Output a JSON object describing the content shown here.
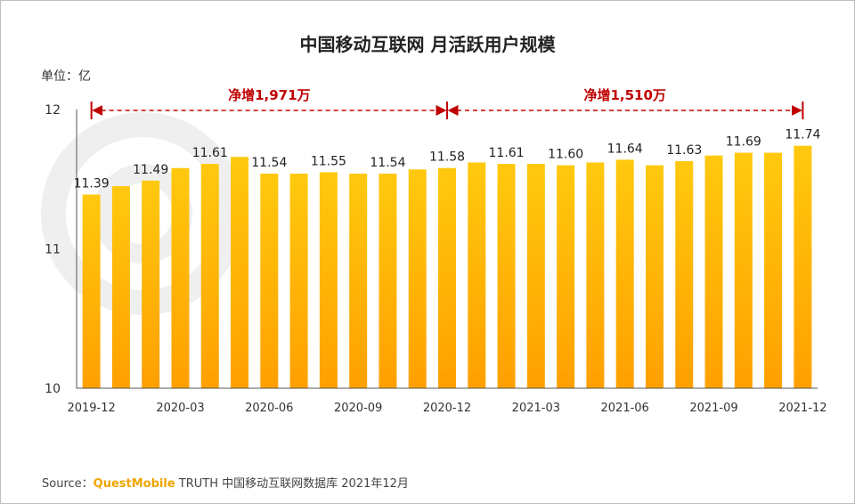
{
  "chart_data": {
    "type": "bar",
    "title": "中国移动互联网 月活跃用户规模",
    "unit_label": "单位：亿",
    "ylim": [
      10,
      12
    ],
    "yticks": [
      "10",
      "11",
      "12"
    ],
    "categories": [
      "2019-12",
      "2020-01",
      "2020-02",
      "2020-03",
      "2020-04",
      "2020-05",
      "2020-06",
      "2020-07",
      "2020-08",
      "2020-09",
      "2020-10",
      "2020-11",
      "2020-12",
      "2021-01",
      "2021-02",
      "2021-03",
      "2021-04",
      "2021-05",
      "2021-06",
      "2021-07",
      "2021-08",
      "2021-09",
      "2021-10",
      "2021-11",
      "2021-12"
    ],
    "xtick_labels": [
      "2019-12",
      "2020-03",
      "2020-06",
      "2020-09",
      "2020-12",
      "2021-03",
      "2021-06",
      "2021-09",
      "2021-12"
    ],
    "values": [
      11.39,
      11.45,
      11.49,
      11.58,
      11.61,
      11.66,
      11.54,
      11.54,
      11.55,
      11.54,
      11.54,
      11.57,
      11.58,
      11.62,
      11.61,
      11.61,
      11.6,
      11.62,
      11.64,
      11.6,
      11.63,
      11.67,
      11.69,
      11.69,
      11.74
    ],
    "data_labels": {
      "0": "11.39",
      "2": "11.49",
      "4": "11.61",
      "6": "11.54",
      "8": "11.55",
      "10": "11.54",
      "12": "11.58",
      "14": "11.61",
      "16": "11.60",
      "18": "11.64",
      "20": "11.63",
      "22": "11.69",
      "24": "11.74"
    },
    "annotations": [
      {
        "text": "净增1,971万",
        "from": "2019-12",
        "to": "2020-12"
      },
      {
        "text": "净增1,510万",
        "from": "2020-12",
        "to": "2021-12"
      }
    ],
    "colors": {
      "bar_top": "#ffc90e",
      "bar_bottom": "#ffa000",
      "annotation": "#c00000",
      "axis": "#555555"
    }
  },
  "source": {
    "prefix": "Source：",
    "brand": "QuestMobile",
    "rest": " TRUTH 中国移动互联网数据库 2021年12月"
  }
}
